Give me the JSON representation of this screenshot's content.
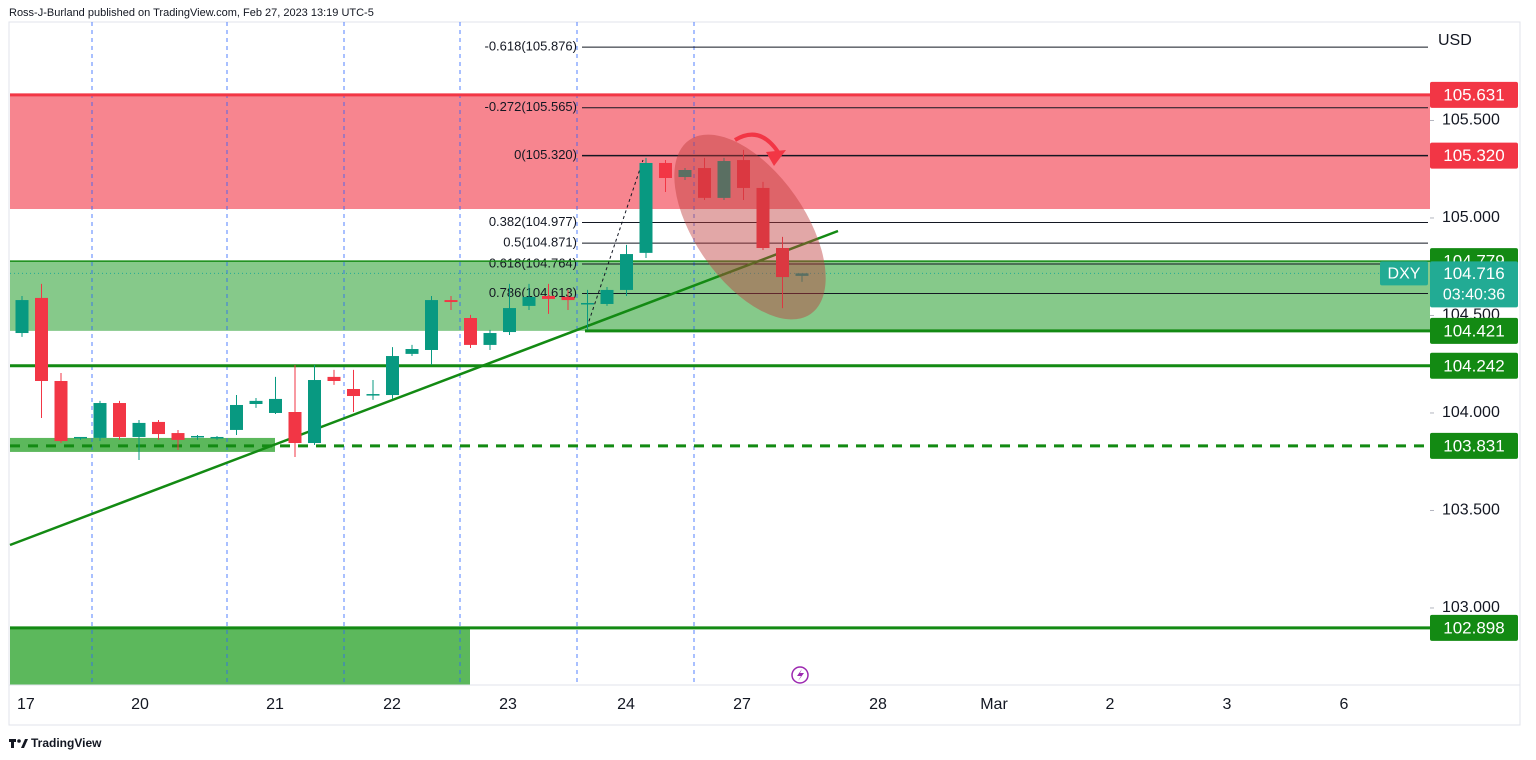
{
  "header": "Ross-J-Burland published on TradingView.com, Feb 27, 2023 13:19 UTC-5",
  "footer": "TradingView",
  "chart_data": {
    "type": "candlestick",
    "symbol": "DXY",
    "currency": "USD",
    "countdown": "03:40:36",
    "last_price": 104.716,
    "last_price_color": "#22ab94",
    "categories": [
      "17",
      "20",
      "21",
      "22",
      "23",
      "24",
      "27",
      "28",
      "Mar",
      "2",
      "3",
      "6"
    ],
    "open": [
      104.41,
      104.59,
      104.164,
      103.872,
      103.872,
      104.051,
      103.877,
      103.954,
      103.897,
      103.877,
      103.872,
      103.913,
      104.046,
      104.0,
      104.005,
      103.846,
      104.185,
      104.123,
      104.092,
      104.092,
      104.303,
      104.323,
      104.579,
      104.487,
      104.349,
      104.415,
      104.549,
      104.6,
      104.595,
      104.559,
      104.559,
      104.631,
      104.821,
      105.282,
      105.21,
      105.256,
      105.103,
      105.297,
      105.154,
      104.846,
      104.703
    ],
    "high": [
      104.6,
      104.662,
      104.205,
      103.877,
      104.062,
      104.062,
      103.964,
      103.964,
      103.913,
      103.887,
      103.882,
      104.092,
      104.077,
      104.185,
      104.246,
      104.246,
      104.221,
      104.221,
      104.169,
      104.338,
      104.349,
      104.6,
      104.6,
      104.503,
      104.426,
      104.662,
      104.662,
      104.662,
      104.631,
      104.631,
      104.646,
      104.862,
      105.308,
      105.297,
      105.256,
      105.308,
      105.308,
      105.349,
      105.185,
      104.903,
      104.713
    ],
    "low": [
      104.39,
      103.974,
      103.846,
      103.862,
      103.856,
      103.862,
      103.759,
      103.862,
      103.81,
      103.862,
      103.862,
      103.887,
      104.026,
      103.995,
      103.774,
      103.836,
      104.144,
      104.005,
      104.067,
      104.072,
      104.292,
      104.246,
      104.528,
      104.333,
      104.323,
      104.4,
      104.528,
      104.508,
      104.528,
      104.426,
      104.549,
      104.6,
      104.795,
      105.133,
      105.195,
      105.092,
      105.092,
      105.092,
      104.836,
      104.538,
      104.672
    ],
    "close": [
      104.579,
      104.164,
      103.856,
      103.877,
      104.051,
      103.877,
      103.949,
      103.892,
      103.862,
      103.882,
      103.877,
      104.041,
      104.062,
      104.072,
      103.846,
      104.169,
      104.164,
      104.087,
      104.097,
      104.292,
      104.328,
      104.579,
      104.569,
      104.349,
      104.41,
      104.538,
      104.595,
      104.585,
      104.579,
      104.564,
      104.631,
      104.815,
      105.282,
      105.205,
      105.246,
      105.103,
      105.292,
      105.154,
      104.846,
      104.697,
      104.716
    ],
    "up_color": "#089981",
    "down_color": "#f23645",
    "ylim": [
      102.605,
      106.005
    ],
    "yticks": [
      {
        "value": 103,
        "label": "103.000"
      },
      {
        "value": 103.5,
        "label": "103.500"
      },
      {
        "value": 104,
        "label": "104.000"
      },
      {
        "value": 104.5,
        "label": "104.500"
      },
      {
        "value": 105,
        "label": "105.000"
      },
      {
        "value": 105.5,
        "label": "105.500"
      }
    ],
    "grid": false,
    "zones": [
      {
        "from": 105.631,
        "to": 105.046,
        "color": "#f7858f"
      },
      {
        "from": 104.779,
        "to": 104.421,
        "color": "#86c98a"
      }
    ],
    "fib": [
      {
        "label": "-0.618(105.876)",
        "value": 105.876
      },
      {
        "label": "-0.272(105.565)",
        "value": 105.565
      },
      {
        "label": "0(105.320)",
        "value": 105.32
      },
      {
        "label": "0.382(104.977)",
        "value": 104.977
      },
      {
        "label": "0.5(104.871)",
        "value": 104.871
      },
      {
        "label": "0.618(104.764)",
        "value": 104.764
      },
      {
        "label": "0.786(104.613)",
        "value": 104.613
      }
    ],
    "levels": [
      {
        "value": 105.631,
        "color": "#f23645",
        "style": "solid"
      },
      {
        "value": {
          "value": 105.32,
          "label": "105.320"
        },
        "color": "#f23645",
        "style": "none"
      },
      {
        "value": 104.779,
        "color": "#138a13",
        "style": "thin"
      },
      {
        "value": 104.421,
        "color": "#138a13",
        "style": "solid"
      },
      {
        "value": 104.242,
        "color": "#138a13",
        "style": "solid"
      },
      {
        "value": 103.831,
        "color": "#138a13",
        "style": "dashed"
      },
      {
        "value": 102.898,
        "color": "#138a13",
        "style": "solid"
      }
    ]
  }
}
